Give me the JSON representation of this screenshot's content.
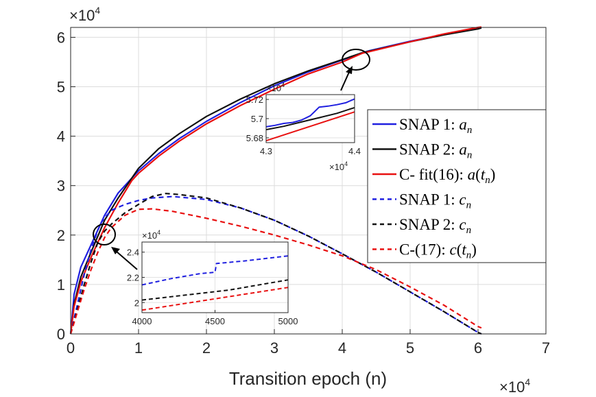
{
  "chart_data": {
    "type": "line",
    "title": "",
    "xlabel": "Transition epoch (n)",
    "ylabel": "",
    "x_exponent_label": "×10",
    "x_exponent_power": "4",
    "y_exponent_label": "×10",
    "y_exponent_power": "4",
    "xlim": [
      0,
      7
    ],
    "ylim": [
      0,
      6.2
    ],
    "x_ticks": [
      "0",
      "1",
      "2",
      "3",
      "4",
      "5",
      "6",
      "7"
    ],
    "y_ticks": [
      "0",
      "1",
      "2",
      "3",
      "4",
      "5",
      "6"
    ],
    "units_note": "x and y values in units of 10^4",
    "series": [
      {
        "name": "SNAP 1: a_n",
        "label_main": "SNAP 1: ",
        "label_sym": "a",
        "label_sub": "n",
        "label_paren": "",
        "color": "#1f1fe0",
        "dash": "solid",
        "x": [
          0,
          0.05,
          0.15,
          0.3,
          0.5,
          0.7,
          1.0,
          1.3,
          1.6,
          2.0,
          2.5,
          3.0,
          3.5,
          4.0,
          4.3,
          4.4,
          5.0,
          5.5,
          6.0,
          6.05
        ],
        "y": [
          0,
          0.8,
          1.35,
          1.8,
          2.4,
          2.85,
          3.3,
          3.65,
          3.95,
          4.3,
          4.68,
          5.02,
          5.3,
          5.54,
          5.69,
          5.73,
          5.92,
          6.06,
          6.18,
          6.2
        ]
      },
      {
        "name": "SNAP 2: a_n",
        "label_main": "SNAP 2: ",
        "label_sym": "a",
        "label_sub": "n",
        "label_paren": "",
        "color": "#111111",
        "dash": "solid",
        "x": [
          0,
          0.05,
          0.15,
          0.3,
          0.5,
          0.7,
          1.0,
          1.3,
          1.6,
          2.0,
          2.5,
          3.0,
          3.5,
          4.0,
          4.3,
          4.4,
          5.0,
          5.5,
          6.0,
          6.05
        ],
        "y": [
          0,
          0.6,
          1.15,
          1.65,
          2.3,
          2.75,
          3.35,
          3.75,
          4.05,
          4.4,
          4.75,
          5.06,
          5.32,
          5.55,
          5.69,
          5.72,
          5.91,
          6.05,
          6.17,
          6.19
        ]
      },
      {
        "name": "C- fit(16): a(t_n)",
        "label_main": "C- fit(16): ",
        "label_sym": "a",
        "label_sub": "n",
        "label_paren": "t",
        "color": "#e81010",
        "dash": "solid",
        "x": [
          0,
          0.05,
          0.15,
          0.3,
          0.5,
          0.7,
          0.9,
          1.0,
          1.3,
          1.6,
          2.0,
          2.5,
          3.0,
          3.5,
          4.0,
          4.3,
          4.4,
          5.0,
          5.5,
          6.0,
          6.05
        ],
        "y": [
          0,
          0.55,
          1.05,
          1.55,
          2.15,
          2.65,
          3.1,
          3.25,
          3.6,
          3.9,
          4.25,
          4.62,
          4.95,
          5.26,
          5.5,
          5.68,
          5.71,
          5.91,
          6.07,
          6.2,
          6.21
        ]
      },
      {
        "name": "SNAP 1: c_n",
        "label_main": "SNAP 1: ",
        "label_sym": "c",
        "label_sub": "n",
        "label_paren": "",
        "color": "#1f1fe0",
        "dash": "dashed",
        "x": [
          0,
          0.1,
          0.2,
          0.3,
          0.4,
          0.45,
          0.5,
          0.6,
          0.8,
          1.0,
          1.2,
          1.5,
          2.0,
          2.5,
          3.0,
          3.5,
          4.0,
          4.5,
          5.0,
          5.5,
          6.0,
          6.05
        ],
        "y": [
          0,
          0.6,
          1.2,
          1.7,
          2.1,
          2.25,
          2.35,
          2.5,
          2.62,
          2.7,
          2.75,
          2.78,
          2.72,
          2.55,
          2.3,
          1.98,
          1.62,
          1.25,
          0.85,
          0.45,
          0.03,
          0
        ]
      },
      {
        "name": "SNAP 2: c_n",
        "label_main": "SNAP 2: ",
        "label_sym": "c",
        "label_sub": "n",
        "label_paren": "",
        "color": "#111111",
        "dash": "dashed",
        "x": [
          0,
          0.1,
          0.2,
          0.3,
          0.4,
          0.5,
          0.6,
          0.8,
          1.0,
          1.2,
          1.4,
          1.6,
          2.0,
          2.5,
          3.0,
          3.5,
          4.0,
          4.5,
          5.0,
          5.5,
          6.0,
          6.05
        ],
        "y": [
          0,
          0.5,
          1.0,
          1.45,
          1.85,
          2.08,
          2.22,
          2.45,
          2.62,
          2.78,
          2.84,
          2.82,
          2.75,
          2.55,
          2.3,
          1.98,
          1.62,
          1.25,
          0.85,
          0.45,
          0.03,
          0
        ]
      },
      {
        "name": "C-(17): c(t_n)",
        "label_main": "C-(17): ",
        "label_sym": "c",
        "label_sub": "n",
        "label_paren": "t",
        "color": "#e81010",
        "dash": "dashed",
        "x": [
          0,
          0.1,
          0.2,
          0.3,
          0.4,
          0.5,
          0.6,
          0.8,
          1.0,
          1.2,
          1.5,
          2.0,
          2.5,
          3.0,
          3.5,
          4.0,
          4.5,
          5.0,
          5.5,
          6.0,
          6.05
        ],
        "y": [
          0,
          0.45,
          0.9,
          1.3,
          1.65,
          1.95,
          2.15,
          2.4,
          2.52,
          2.53,
          2.48,
          2.34,
          2.18,
          2.0,
          1.8,
          1.58,
          1.3,
          0.95,
          0.58,
          0.15,
          0.12
        ]
      }
    ],
    "insets": [
      {
        "id": "inset_a",
        "xlim": [
          4.3,
          4.4
        ],
        "ylim": [
          5.675,
          5.725
        ],
        "x_ticks": [
          "4.3",
          "4.4"
        ],
        "y_ticks": [
          "5.68",
          "5.7",
          "5.72"
        ],
        "x_exponent_label": "×10",
        "x_exponent_power": "4",
        "y_exponent_label": "×10",
        "y_exponent_power": "4",
        "series": [
          {
            "color": "#1f1fe0",
            "dash": "solid",
            "x": [
              4.3,
              4.31,
              4.32,
              4.33,
              4.34,
              4.35,
              4.355,
              4.36,
              4.37,
              4.38,
              4.39,
              4.4
            ],
            "y": [
              5.6915,
              5.693,
              5.695,
              5.696,
              5.6985,
              5.703,
              5.7075,
              5.712,
              5.713,
              5.7145,
              5.7165,
              5.7205
            ]
          },
          {
            "color": "#111111",
            "dash": "solid",
            "x": [
              4.3,
              4.32,
              4.34,
              4.36,
              4.38,
              4.4
            ],
            "y": [
              5.6885,
              5.692,
              5.6965,
              5.701,
              5.7055,
              5.7115
            ]
          },
          {
            "color": "#e81010",
            "dash": "solid",
            "x": [
              4.3,
              4.4
            ],
            "y": [
              5.677,
              5.707
            ]
          }
        ]
      },
      {
        "id": "inset_c",
        "xlim": [
          4000,
          5000
        ],
        "ylim": [
          1.92,
          2.48
        ],
        "x_ticks": [
          "4000",
          "4500",
          "5000"
        ],
        "y_ticks": [
          "2",
          "2.2",
          "2.4"
        ],
        "y_exponent_label": "×10",
        "y_exponent_power": "4",
        "series": [
          {
            "color": "#1f1fe0",
            "dash": "dashed",
            "x": [
              4000,
              4200,
              4400,
              4500,
              4510,
              4700,
              5000
            ],
            "y": [
              2.14,
              2.19,
              2.23,
              2.24,
              2.31,
              2.33,
              2.37
            ]
          },
          {
            "color": "#111111",
            "dash": "dashed",
            "x": [
              4000,
              4300,
              4600,
              4800,
              5000
            ],
            "y": [
              2.02,
              2.06,
              2.1,
              2.14,
              2.18
            ]
          },
          {
            "color": "#e81010",
            "dash": "dashed",
            "x": [
              4000,
              4500,
              5000
            ],
            "y": [
              1.94,
              2.03,
              2.12
            ]
          }
        ]
      }
    ]
  }
}
